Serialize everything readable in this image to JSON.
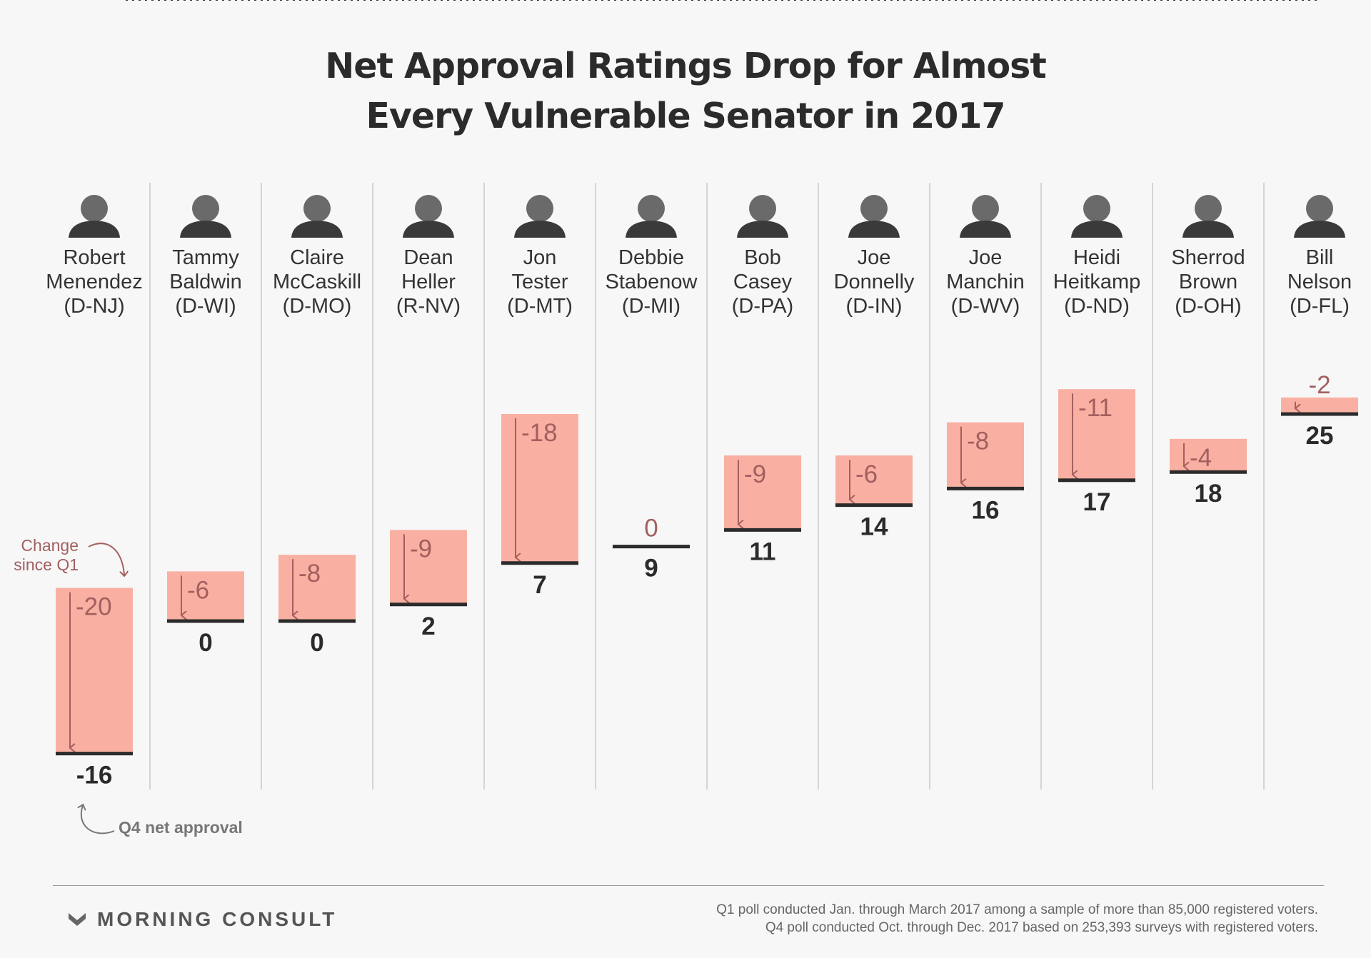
{
  "title_line1": "Net Approval Ratings Drop for Almost",
  "title_line2": "Every Vulnerable Senator in 2017",
  "annotation_change": [
    "Change",
    "since Q1"
  ],
  "annotation_q4": "Q4 net approval",
  "footer": {
    "logo": "MORNING CONSULT",
    "note1": "Q1 poll conducted Jan. through March 2017 among a sample of more than 85,000 registered voters.",
    "note2": "Q4 poll conducted Oct. through Dec. 2017 based on 253,393 surveys with registered voters."
  },
  "colors": {
    "bar": "#f9b0a2",
    "arrow": "#a35f5f",
    "base": "#2b2b2b"
  },
  "chart_data": {
    "type": "bar",
    "categories": [
      [
        "Robert",
        "Menendez",
        "(D-NJ)"
      ],
      [
        "Tammy",
        "Baldwin",
        "(D-WI)"
      ],
      [
        "Claire",
        "McCaskill",
        "(D-MO)"
      ],
      [
        "Dean",
        "Heller",
        "(R-NV)"
      ],
      [
        "Jon",
        "Tester",
        "(D-MT)"
      ],
      [
        "Debbie",
        "Stabenow",
        "(D-MI)"
      ],
      [
        "Bob",
        "Casey",
        "(D-PA)"
      ],
      [
        "Joe",
        "Donnelly",
        "(D-IN)"
      ],
      [
        "Joe",
        "Manchin",
        "(D-WV)"
      ],
      [
        "Heidi",
        "Heitkamp",
        "(D-ND)"
      ],
      [
        "Sherrod",
        "Brown",
        "(D-OH)"
      ],
      [
        "Bill",
        "Nelson",
        "(D-FL)"
      ]
    ],
    "series": [
      {
        "name": "Q4 net approval",
        "values": [
          -16,
          0,
          0,
          2,
          7,
          9,
          11,
          14,
          16,
          17,
          18,
          25
        ]
      },
      {
        "name": "Change since Q1",
        "values": [
          -20,
          -6,
          -8,
          -9,
          -18,
          0,
          -9,
          -6,
          -8,
          -11,
          -4,
          -2
        ]
      }
    ],
    "value_labels": [
      "-16",
      "0",
      "0",
      "2",
      "7",
      "9",
      "11",
      "14",
      "16",
      "17",
      "18",
      "25"
    ],
    "change_labels": [
      "-20",
      "-6",
      "-8",
      "-9",
      "-18",
      "0",
      "-9",
      "-6",
      "-8",
      "-11",
      "-4",
      "-2"
    ],
    "grid": false,
    "zero_line": "dotted"
  }
}
